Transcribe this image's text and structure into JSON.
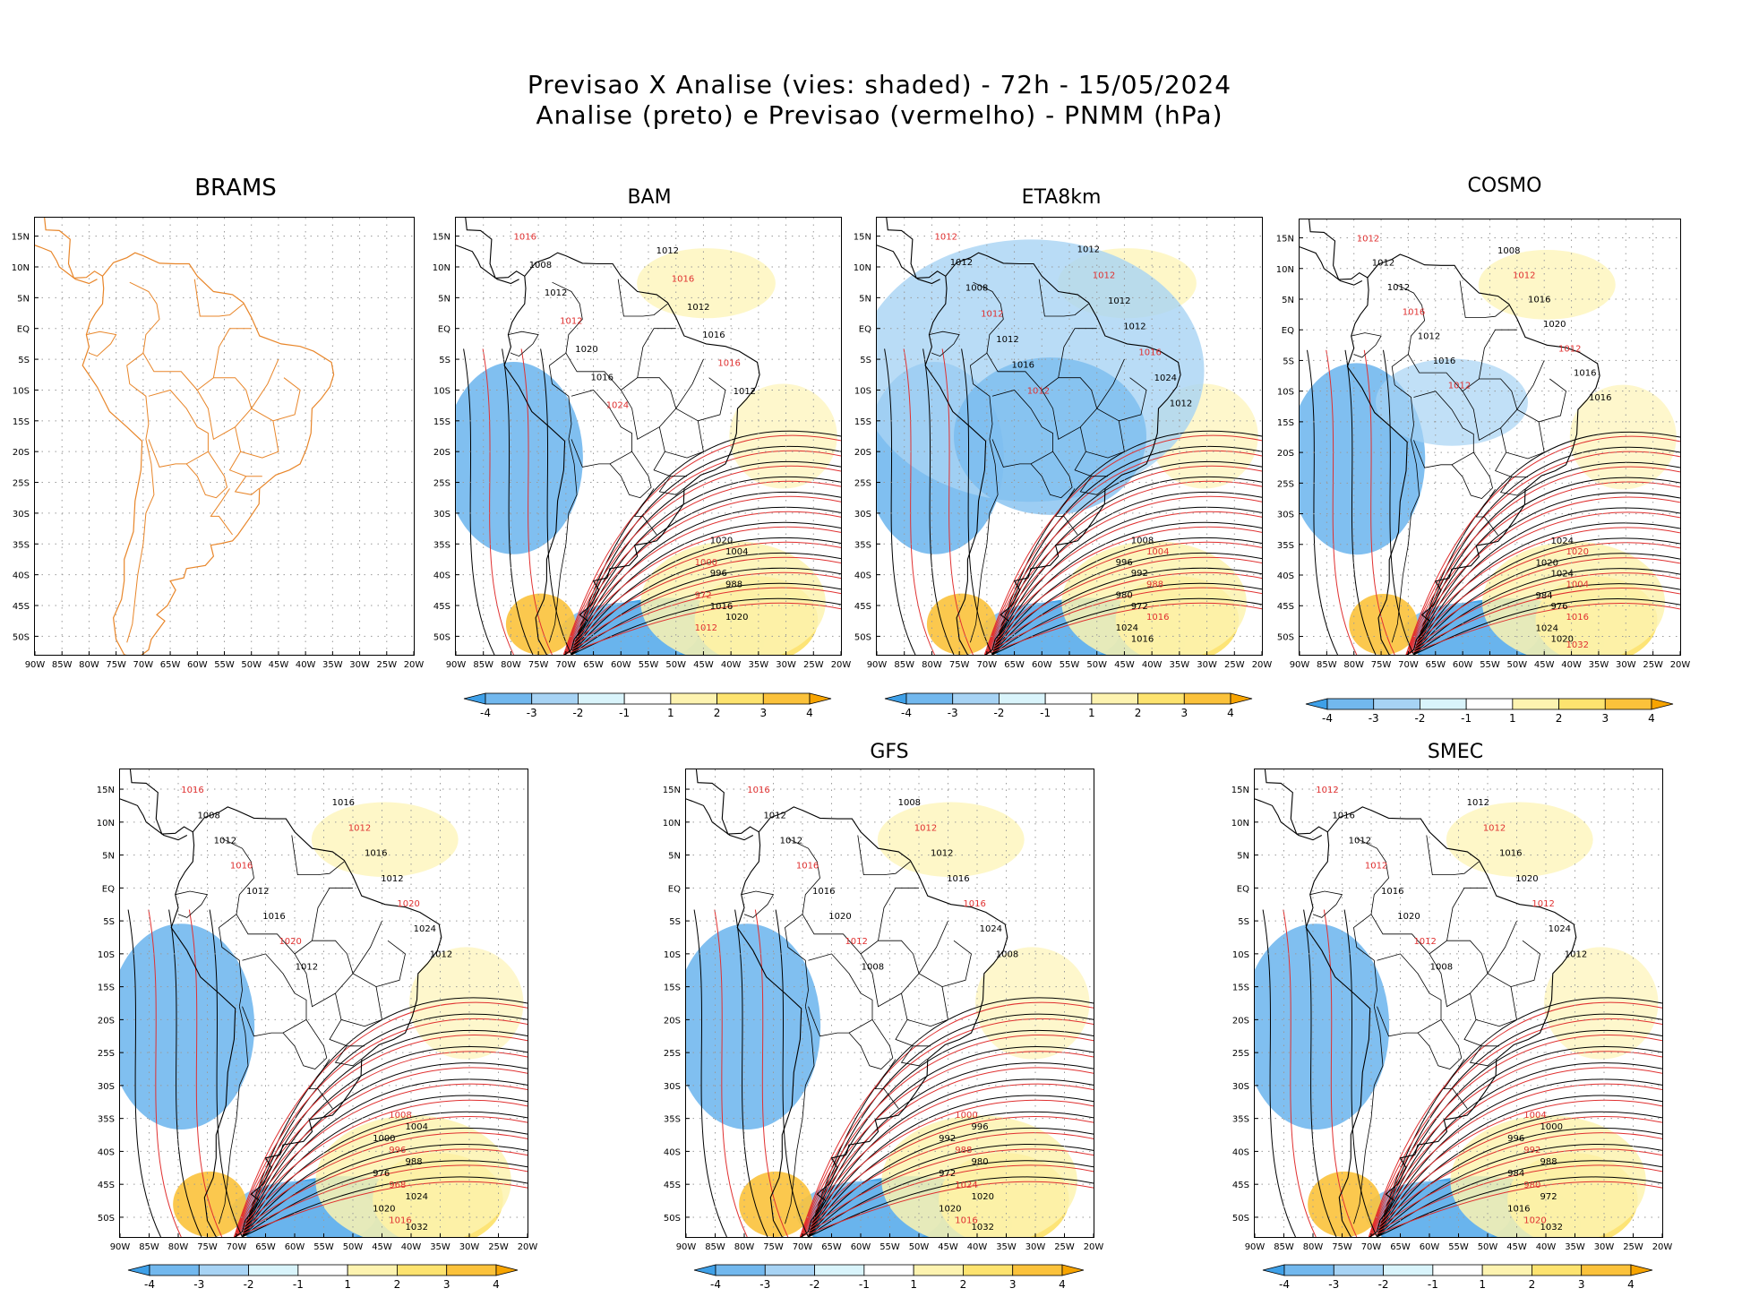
{
  "header": {
    "line1": "Previsao X Analise (vies: shaded) - 72h - 15/05/2024",
    "line2": "Analise (preto) e Previsao (vermelho) - PNMM (hPa)"
  },
  "axes": {
    "lat_labels": [
      "15N",
      "10N",
      "5N",
      "EQ",
      "5S",
      "10S",
      "15S",
      "20S",
      "25S",
      "30S",
      "35S",
      "40S",
      "45S",
      "50S"
    ],
    "lon_labels": [
      "90W",
      "85W",
      "80W",
      "75W",
      "70W",
      "65W",
      "60W",
      "55W",
      "50W",
      "45W",
      "40W",
      "35W",
      "30W",
      "25W",
      "20W"
    ]
  },
  "colorbar": {
    "labels": [
      "-4",
      "-3",
      "-2",
      "-1",
      "1",
      "2",
      "3",
      "4"
    ],
    "colors": [
      "#3ea0e8",
      "#72b8ee",
      "#a7d3f4",
      "#d9f4fb",
      "#ffffff",
      "#fdf3b0",
      "#fde36f",
      "#fbc23b",
      "#f7a400"
    ]
  },
  "panels": [
    {
      "id": "brams",
      "title": "BRAMS",
      "contours": []
    },
    {
      "id": "bam",
      "title": "BAM",
      "contours": [
        "1016",
        "1012",
        "1008",
        "1016",
        "1012",
        "1012",
        "1012",
        "1016",
        "1020",
        "1016",
        "1016",
        "1012",
        "1024",
        "1020",
        "1004",
        "1000",
        "996",
        "988",
        "972",
        "1016",
        "1020",
        "1012"
      ]
    },
    {
      "id": "eta",
      "title": "ETA8km",
      "contours": [
        "1012",
        "1012",
        "1012",
        "1012",
        "1008",
        "1012",
        "1012",
        "1012",
        "1012",
        "1016",
        "1016",
        "1024",
        "1012",
        "1012",
        "1008",
        "1004",
        "996",
        "992",
        "988",
        "980",
        "972",
        "1016",
        "1024",
        "1016"
      ]
    },
    {
      "id": "cosmo",
      "title": "COSMO",
      "contours": [
        "1012",
        "1008",
        "1012",
        "1012",
        "1012",
        "1016",
        "1016",
        "1020",
        "1012",
        "1012",
        "1016",
        "1016",
        "1012",
        "1016",
        "1024",
        "1020",
        "1020",
        "1024",
        "1004",
        "984",
        "976",
        "1016",
        "1024",
        "1020",
        "1032"
      ]
    },
    {
      "id": "fourth",
      "title": "",
      "contours": [
        "1016",
        "1016",
        "1008",
        "1012",
        "1012",
        "1016",
        "1016",
        "1012",
        "1012",
        "1020",
        "1016",
        "1024",
        "1020",
        "1012",
        "1012",
        "1008",
        "1004",
        "1000",
        "996",
        "988",
        "976",
        "968",
        "1024",
        "1020",
        "1016",
        "1032"
      ]
    },
    {
      "id": "gfs",
      "title": "GFS",
      "contours": [
        "1016",
        "1008",
        "1012",
        "1012",
        "1012",
        "1012",
        "1016",
        "1016",
        "1016",
        "1016",
        "1020",
        "1024",
        "1012",
        "1008",
        "1008",
        "1000",
        "996",
        "992",
        "988",
        "980",
        "972",
        "1024",
        "1020",
        "1020",
        "1016",
        "1032"
      ]
    },
    {
      "id": "smec",
      "title": "SMEC",
      "contours": [
        "1012",
        "1012",
        "1016",
        "1012",
        "1012",
        "1016",
        "1012",
        "1020",
        "1016",
        "1012",
        "1020",
        "1024",
        "1012",
        "1012",
        "1008",
        "1004",
        "1000",
        "996",
        "992",
        "988",
        "984",
        "980",
        "972",
        "1016",
        "1020",
        "1032"
      ]
    }
  ]
}
